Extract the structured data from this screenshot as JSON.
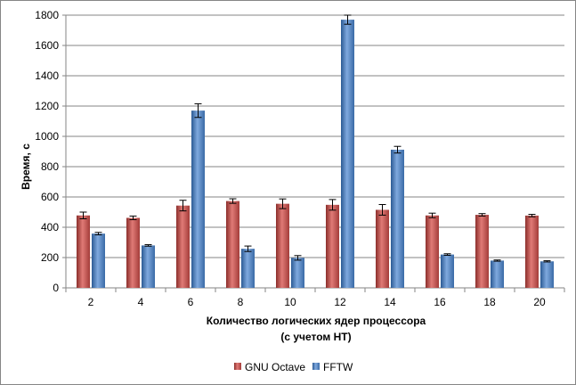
{
  "chart_data": {
    "type": "bar",
    "xlabel_line1": "Количество  логических ядер процессора",
    "xlabel_line2": "(с учетом HT)",
    "ylabel": "Время, с",
    "ylim": [
      0,
      1800
    ],
    "yticks": [
      0,
      200,
      400,
      600,
      800,
      1000,
      1200,
      1400,
      1600,
      1800
    ],
    "grid": true,
    "legend_position": "bottom",
    "categories": [
      "2",
      "4",
      "6",
      "8",
      "10",
      "12",
      "14",
      "16",
      "18",
      "20"
    ],
    "series": [
      {
        "name": "GNU Octave",
        "color": "#c0504d",
        "values": [
          478,
          462,
          543,
          573,
          555,
          548,
          515,
          478,
          482,
          477
        ],
        "errors": [
          22,
          12,
          35,
          15,
          32,
          35,
          35,
          15,
          8,
          8
        ]
      },
      {
        "name": "FFTW",
        "color": "#4f81bd",
        "values": [
          358,
          280,
          1170,
          258,
          198,
          1770,
          912,
          220,
          180,
          175
        ],
        "errors": [
          8,
          5,
          45,
          18,
          15,
          30,
          22,
          5,
          4,
          4
        ]
      }
    ]
  }
}
